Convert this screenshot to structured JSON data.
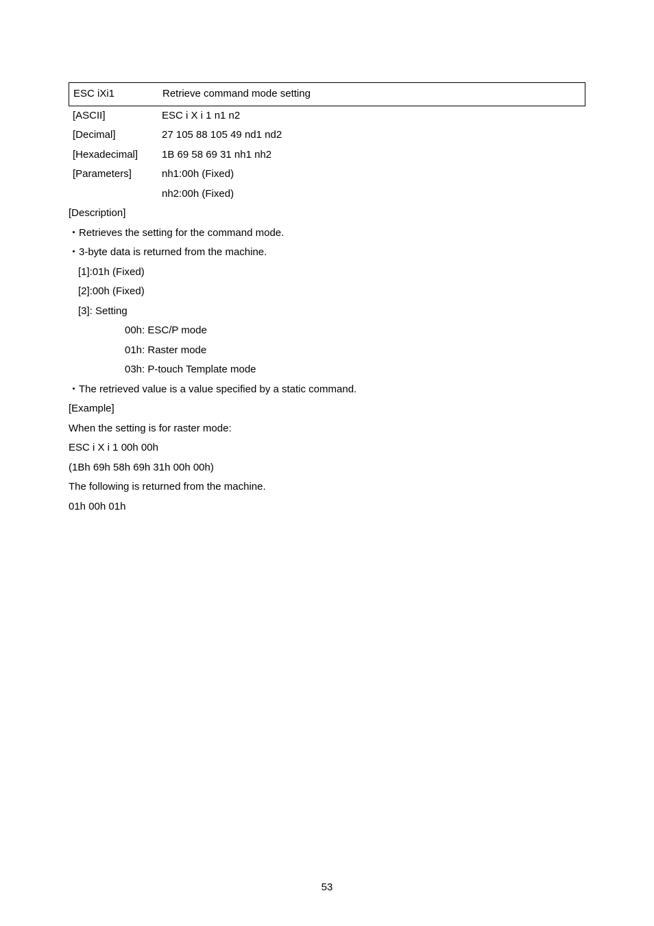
{
  "command": {
    "name": "ESC iXi1",
    "title": "Retrieve command mode setting"
  },
  "defs": {
    "ascii": {
      "label": "[ASCII]",
      "value": "ESC i X i 1 n1 n2"
    },
    "decimal": {
      "label": "[Decimal]",
      "value": "27 105 88 105 49 nd1 nd2"
    },
    "hex": {
      "label": "[Hexadecimal]",
      "value": "1B 69 58 69 31 nh1 nh2"
    },
    "parameters": {
      "label": "[Parameters]",
      "value": "nh1:00h (Fixed)"
    },
    "parameters2": {
      "value": "nh2:00h (Fixed)"
    }
  },
  "description": {
    "header": "[Description]",
    "b1": "・Retrieves the setting for the command mode.",
    "b2": "・3-byte data is returned from the machine.",
    "l1": "[1]:01h (Fixed)",
    "l2": "[2]:00h (Fixed)",
    "l3": "[3]: Setting",
    "m1": "00h: ESC/P mode",
    "m2": "01h: Raster mode",
    "m3": "03h: P-touch Template mode",
    "b3": "・The retrieved value is a value specified by a static command."
  },
  "example": {
    "header": "[Example]",
    "l1": "When the setting is for raster mode:",
    "l2": "ESC i X i 1 00h 00h",
    "l3": "(1Bh 69h 58h 69h 31h 00h 00h)",
    "l4": "The following is returned from the machine.",
    "l5": "01h 00h 01h"
  },
  "page_number": "53"
}
